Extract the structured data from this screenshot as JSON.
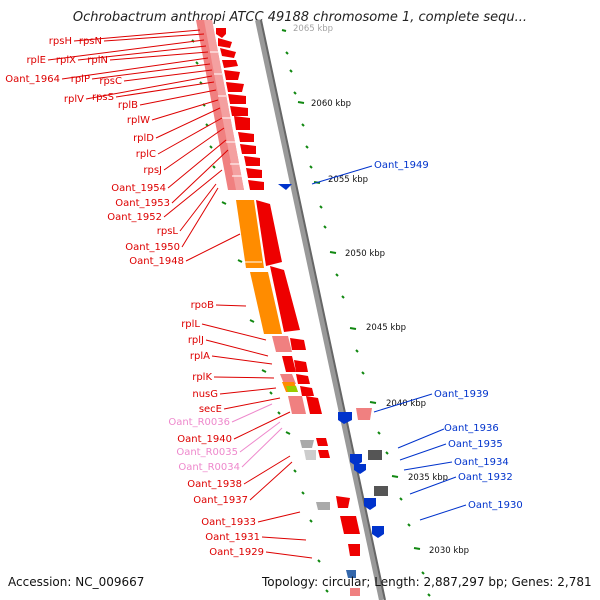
{
  "title": "Ochrobactrum anthropi ATCC 49188 chromosome 1, complete sequ...",
  "footer": {
    "accession": "Accession: NC_009667",
    "summary": "Topology: circular; Length: 2,887,297 bp; Genes: 2,781"
  },
  "colors": {
    "gene_red": "#ee0000",
    "gene_pink": "#f08080",
    "gene_orange": "#ff8c00",
    "gene_blue": "#0033cc",
    "gene_gray": "#888888",
    "rna_pink": "#ee88cc",
    "tick_green": "#118811",
    "backbone": "#888888"
  },
  "scale": {
    "label_2065_partial": "2065 kbp",
    "label_2060": "2060 kbp",
    "label_2055": "2055 kbp",
    "label_2050": "2050 kbp",
    "label_2045": "2045 kbp",
    "label_2040": "2040 kbp",
    "label_2035": "2035 kbp",
    "label_2030": "2030 kbp"
  },
  "left_labels": {
    "rpsH": "rpsH",
    "rpsN": "rpsN",
    "rplE": "rplE",
    "rplX": "rplX",
    "rplN": "rplN",
    "oant1964": "Oant_1964",
    "rplP": "rplP",
    "rpsC": "rpsC",
    "rplV": "rplV",
    "rpsS": "rpsS",
    "rplB": "rplB",
    "rplW": "rplW",
    "rplD": "rplD",
    "rplC": "rplC",
    "rpsJ": "rpsJ",
    "oant1954": "Oant_1954",
    "oant1953": "Oant_1953",
    "oant1952": "Oant_1952",
    "rpsL": "rpsL",
    "oant1950": "Oant_1950",
    "oant1948": "Oant_1948",
    "rpoB": "rpoB",
    "rplL": "rplL",
    "rplJ": "rplJ",
    "rplA": "rplA",
    "rplK": "rplK",
    "nusG": "nusG",
    "secE": "secE",
    "oantR0036": "Oant_R0036",
    "oant1940": "Oant_1940",
    "oantR0035": "Oant_R0035",
    "oantR0034": "Oant_R0034",
    "oant1938": "Oant_1938",
    "oant1937": "Oant_1937",
    "oant1933": "Oant_1933",
    "oant1931": "Oant_1931",
    "oant1929": "Oant_1929"
  },
  "right_labels": {
    "oant1949": "Oant_1949",
    "oant1939": "Oant_1939",
    "oant1936": "Oant_1936",
    "oant1935": "Oant_1935",
    "oant1934": "Oant_1934",
    "oant1932": "Oant_1932",
    "oant1930": "Oant_1930"
  }
}
